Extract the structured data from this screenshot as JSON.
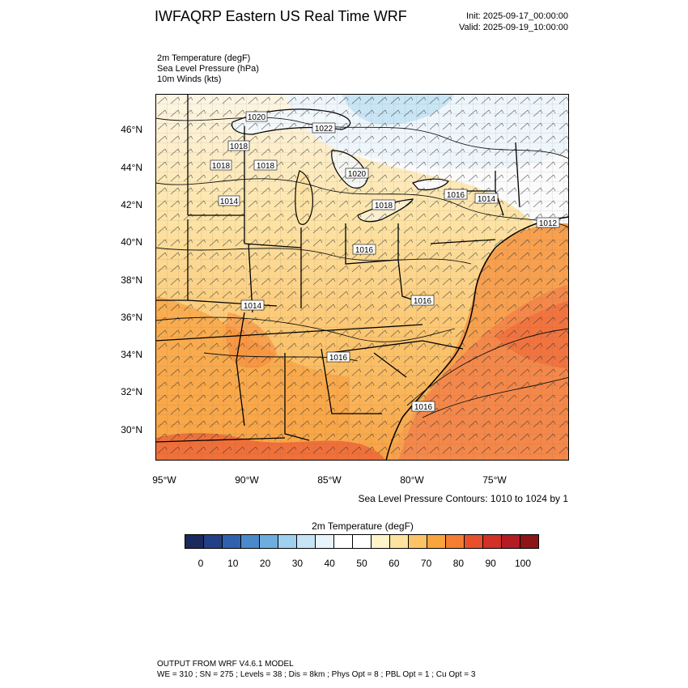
{
  "header": {
    "title": "IWFAQRP Eastern US Real Time WRF",
    "init": "Init: 2025-09-17_00:00:00",
    "valid": "Valid: 2025-09-19_10:00:00"
  },
  "fields": [
    "2m Temperature   (degF)",
    "Sea Level Pressure   (hPa)",
    "10m Winds   (kts)"
  ],
  "map": {
    "lat_labels": [
      "46°N",
      "44°N",
      "42°N",
      "40°N",
      "38°N",
      "36°N",
      "34°N",
      "32°N",
      "30°N"
    ],
    "lon_labels": [
      "95°W",
      "90°W",
      "85°W",
      "80°W",
      "75°W"
    ],
    "pressure_labels": [
      "1020",
      "1022",
      "1018",
      "1018",
      "1018",
      "1020",
      "1014",
      "1018",
      "1016",
      "1014",
      "1012",
      "1016",
      "1014",
      "1016",
      "1016",
      "1016"
    ],
    "contour_note": "Sea Level Pressure Contours: 1010 to 1024 by 1"
  },
  "colorbar": {
    "title": "2m Temperature  (degF)",
    "ticks": [
      "0",
      "10",
      "20",
      "30",
      "40",
      "50",
      "60",
      "70",
      "80",
      "90",
      "100"
    ],
    "colors": [
      "#1a2a5e",
      "#233f86",
      "#2f62ad",
      "#4a8acb",
      "#6eaede",
      "#9fd0ef",
      "#c5e5f7",
      "#e8f4fb",
      "#ffffff",
      "#ffffff",
      "#fff3c9",
      "#fde39f",
      "#fcc467",
      "#f9a53d",
      "#f57d32",
      "#e8502d",
      "#d33027",
      "#b41c24",
      "#8c1518"
    ]
  },
  "footer": {
    "line1": "OUTPUT FROM WRF V4.6.1 MODEL",
    "line2": "WE = 310 ; SN = 275 ; Levels = 38 ; Dis = 8km ; Phys Opt = 8 ; PBL Opt = 1 ; Cu Opt = 3"
  }
}
